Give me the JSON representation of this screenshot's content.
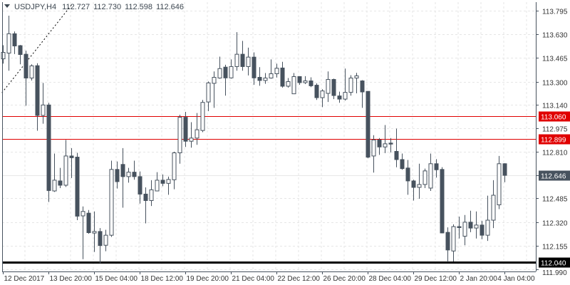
{
  "header": {
    "symbol": "USDJPY,H4",
    "open": "112.727",
    "high": "112.730",
    "low": "112.598",
    "close": "112.646",
    "menu_icon": "triangle-down-icon"
  },
  "colors": {
    "bear_fill": "#47525e",
    "bull_fill": "#ffffff",
    "candle_outline": "#47525e",
    "level_line": "#e00000",
    "support_line": "#000000",
    "current_price_bg": "#47525e",
    "grid": "#e6e6e6"
  },
  "chart_data": {
    "type": "candlestick",
    "symbol": "USDJPY",
    "timeframe": "H4",
    "ylim": [
      111.99,
      113.795
    ],
    "grid": true,
    "y_ticks": [
      "113.795",
      "113.630",
      "113.465",
      "113.300",
      "113.140",
      "112.975",
      "112.810",
      "112.646",
      "112.485",
      "112.320",
      "112.155",
      "111.990"
    ],
    "x_labels": [
      {
        "candle": 0,
        "label": "12 Dec 2017"
      },
      {
        "candle": 8,
        "label": "13 Dec 20:00"
      },
      {
        "candle": 16,
        "label": "15 Dec 04:00"
      },
      {
        "candle": 24,
        "label": "18 Dec 12:00"
      },
      {
        "candle": 32,
        "label": "19 Dec 20:00"
      },
      {
        "candle": 40,
        "label": "21 Dec 04:00"
      },
      {
        "candle": 48,
        "label": "22 Dec 12:00"
      },
      {
        "candle": 56,
        "label": "26 Dec 20:00"
      },
      {
        "candle": 64,
        "label": "28 Dec 04:00"
      },
      {
        "candle": 72,
        "label": "29 Dec 12:00"
      },
      {
        "candle": 80,
        "label": "2 Jan 20:00"
      },
      {
        "candle": 88,
        "label": "4 Jan 04:00"
      }
    ],
    "ohlc": [
      [
        113.459,
        113.554,
        113.426,
        113.504
      ],
      [
        113.499,
        113.76,
        113.376,
        113.634
      ],
      [
        113.634,
        113.65,
        113.492,
        113.549
      ],
      [
        113.551,
        113.556,
        113.421,
        113.489
      ],
      [
        113.491,
        113.516,
        113.132,
        113.325
      ],
      [
        113.325,
        113.421,
        113.308,
        113.41
      ],
      [
        113.411,
        113.428,
        112.957,
        113.064
      ],
      [
        113.064,
        113.291,
        113.006,
        113.137
      ],
      [
        113.137,
        113.152,
        112.46,
        112.54
      ],
      [
        112.537,
        112.798,
        112.53,
        112.612
      ],
      [
        112.607,
        112.698,
        112.557,
        112.577
      ],
      [
        112.577,
        112.893,
        112.565,
        112.781
      ],
      [
        112.781,
        112.836,
        112.627,
        112.769
      ],
      [
        112.773,
        112.803,
        112.333,
        112.361
      ],
      [
        112.363,
        112.429,
        112.061,
        112.394
      ],
      [
        112.382,
        112.404,
        112.238,
        112.246
      ],
      [
        112.243,
        112.394,
        112.111,
        112.254
      ],
      [
        112.254,
        112.278,
        112.033,
        112.156
      ],
      [
        112.158,
        112.266,
        112.116,
        112.228
      ],
      [
        112.228,
        112.748,
        112.216,
        112.687
      ],
      [
        112.687,
        112.743,
        112.554,
        112.602
      ],
      [
        112.722,
        112.836,
        112.42,
        112.637
      ],
      [
        112.637,
        112.698,
        112.595,
        112.668
      ],
      [
        112.668,
        112.748,
        112.615,
        112.637
      ],
      [
        112.637,
        112.673,
        112.449,
        112.515
      ],
      [
        112.515,
        112.562,
        112.311,
        112.47
      ],
      [
        112.47,
        112.612,
        112.432,
        112.545
      ],
      [
        112.537,
        112.668,
        112.537,
        112.612
      ],
      [
        112.612,
        112.652,
        112.57,
        112.59
      ],
      [
        112.59,
        112.637,
        112.51,
        112.617
      ],
      [
        112.615,
        112.811,
        112.549,
        112.803
      ],
      [
        112.803,
        113.069,
        112.727,
        113.051
      ],
      [
        113.051,
        113.089,
        112.844,
        112.884
      ],
      [
        112.884,
        113.017,
        112.839,
        112.906
      ],
      [
        112.906,
        113.081,
        112.859,
        112.964
      ],
      [
        112.959,
        113.172,
        112.947,
        113.155
      ],
      [
        113.158,
        113.301,
        113.094,
        113.291
      ],
      [
        113.288,
        113.371,
        113.117,
        113.33
      ],
      [
        113.325,
        113.474,
        113.32,
        113.391
      ],
      [
        113.401,
        113.418,
        113.202,
        113.326
      ],
      [
        113.326,
        113.455,
        113.321,
        113.405
      ],
      [
        113.405,
        113.645,
        113.376,
        113.491
      ],
      [
        113.491,
        113.584,
        113.376,
        113.405
      ],
      [
        113.405,
        113.537,
        113.343,
        113.471
      ],
      [
        113.471,
        113.504,
        113.278,
        113.326
      ],
      [
        113.33,
        113.401,
        113.271,
        113.308
      ],
      [
        113.308,
        113.36,
        113.285,
        113.325
      ],
      [
        113.325,
        113.455,
        113.321,
        113.355
      ],
      [
        113.355,
        113.425,
        113.328,
        113.393
      ],
      [
        113.395,
        113.438,
        113.258,
        113.268
      ],
      [
        113.268,
        113.325,
        113.258,
        113.3
      ],
      [
        113.215,
        113.36,
        113.215,
        113.335
      ],
      [
        113.335,
        113.338,
        113.278,
        113.293
      ],
      [
        113.293,
        113.338,
        113.283,
        113.305
      ],
      [
        113.305,
        113.33,
        113.262,
        113.271
      ],
      [
        113.275,
        113.288,
        113.172,
        113.188
      ],
      [
        113.188,
        113.247,
        113.122,
        113.235
      ],
      [
        113.218,
        113.371,
        113.158,
        113.315
      ],
      [
        113.315,
        113.321,
        113.178,
        113.203
      ],
      [
        113.2,
        113.23,
        113.152,
        113.178
      ],
      [
        113.178,
        113.391,
        113.168,
        113.225
      ],
      [
        113.225,
        113.345,
        113.202,
        113.325
      ],
      [
        113.325,
        113.361,
        113.218,
        113.34
      ],
      [
        113.305,
        113.31,
        113.117,
        113.228
      ],
      [
        113.232,
        113.232,
        112.765,
        112.773
      ],
      [
        112.781,
        112.926,
        112.665,
        112.893
      ],
      [
        112.893,
        112.906,
        112.789,
        112.844
      ],
      [
        112.844,
        112.997,
        112.801,
        112.866
      ],
      [
        112.871,
        112.906,
        112.806,
        112.864
      ],
      [
        112.813,
        112.972,
        112.702,
        112.756
      ],
      [
        112.756,
        112.798,
        112.685,
        112.693
      ],
      [
        112.697,
        112.753,
        112.51,
        112.607
      ],
      [
        112.607,
        112.615,
        112.47,
        112.562
      ],
      [
        112.562,
        112.727,
        112.482,
        112.582
      ],
      [
        112.582,
        112.693,
        112.557,
        112.677
      ],
      [
        112.557,
        112.798,
        112.537,
        112.727
      ],
      [
        112.727,
        112.759,
        112.63,
        112.685
      ],
      [
        112.687,
        112.703,
        112.241,
        112.244
      ],
      [
        112.248,
        112.283,
        112.041,
        112.125
      ],
      [
        112.118,
        112.304,
        112.045,
        112.288
      ],
      [
        112.288,
        112.358,
        112.205,
        112.281
      ],
      [
        112.221,
        112.369,
        112.158,
        112.319
      ],
      [
        112.319,
        112.399,
        112.249,
        112.278
      ],
      [
        112.278,
        112.394,
        112.205,
        112.299
      ],
      [
        112.299,
        112.329,
        112.2,
        112.228
      ],
      [
        112.228,
        112.504,
        112.188,
        112.333
      ],
      [
        112.333,
        112.612,
        112.278,
        112.507
      ],
      [
        112.44,
        112.781,
        112.41,
        112.727
      ],
      [
        112.727,
        112.73,
        112.598,
        112.646
      ]
    ],
    "levels": [
      {
        "price": 113.06,
        "label": "113.060",
        "style": "resistance"
      },
      {
        "price": 112.899,
        "label": "112.899",
        "style": "resistance"
      },
      {
        "price": 112.04,
        "label": "112.040",
        "style": "support"
      }
    ],
    "current_price": {
      "price": 112.646,
      "label": "112.646"
    },
    "trendline": {
      "from": {
        "candle": -0.1,
        "price": 113.222
      },
      "to": {
        "candle": 12.2,
        "price": 113.84
      }
    }
  }
}
